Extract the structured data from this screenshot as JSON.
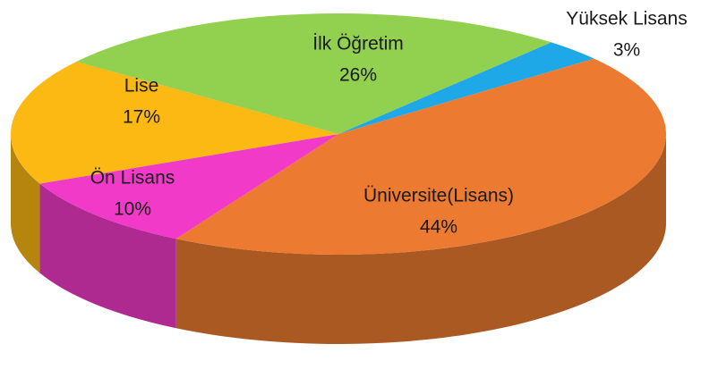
{
  "chart_data": {
    "type": "pie3d",
    "categories": [
      "Yüksek Lisans",
      "Üniversite(Lisans)",
      "Ön Lisans",
      "Lise",
      "İlk Öğretim"
    ],
    "values": [
      3,
      44,
      10,
      17,
      26
    ],
    "value_labels": [
      "3%",
      "44%",
      "10%",
      "17%",
      "26%"
    ],
    "colors": [
      "#1fa8e8",
      "#ec7b31",
      "#f23ac8",
      "#fdb913",
      "#92d050"
    ]
  }
}
